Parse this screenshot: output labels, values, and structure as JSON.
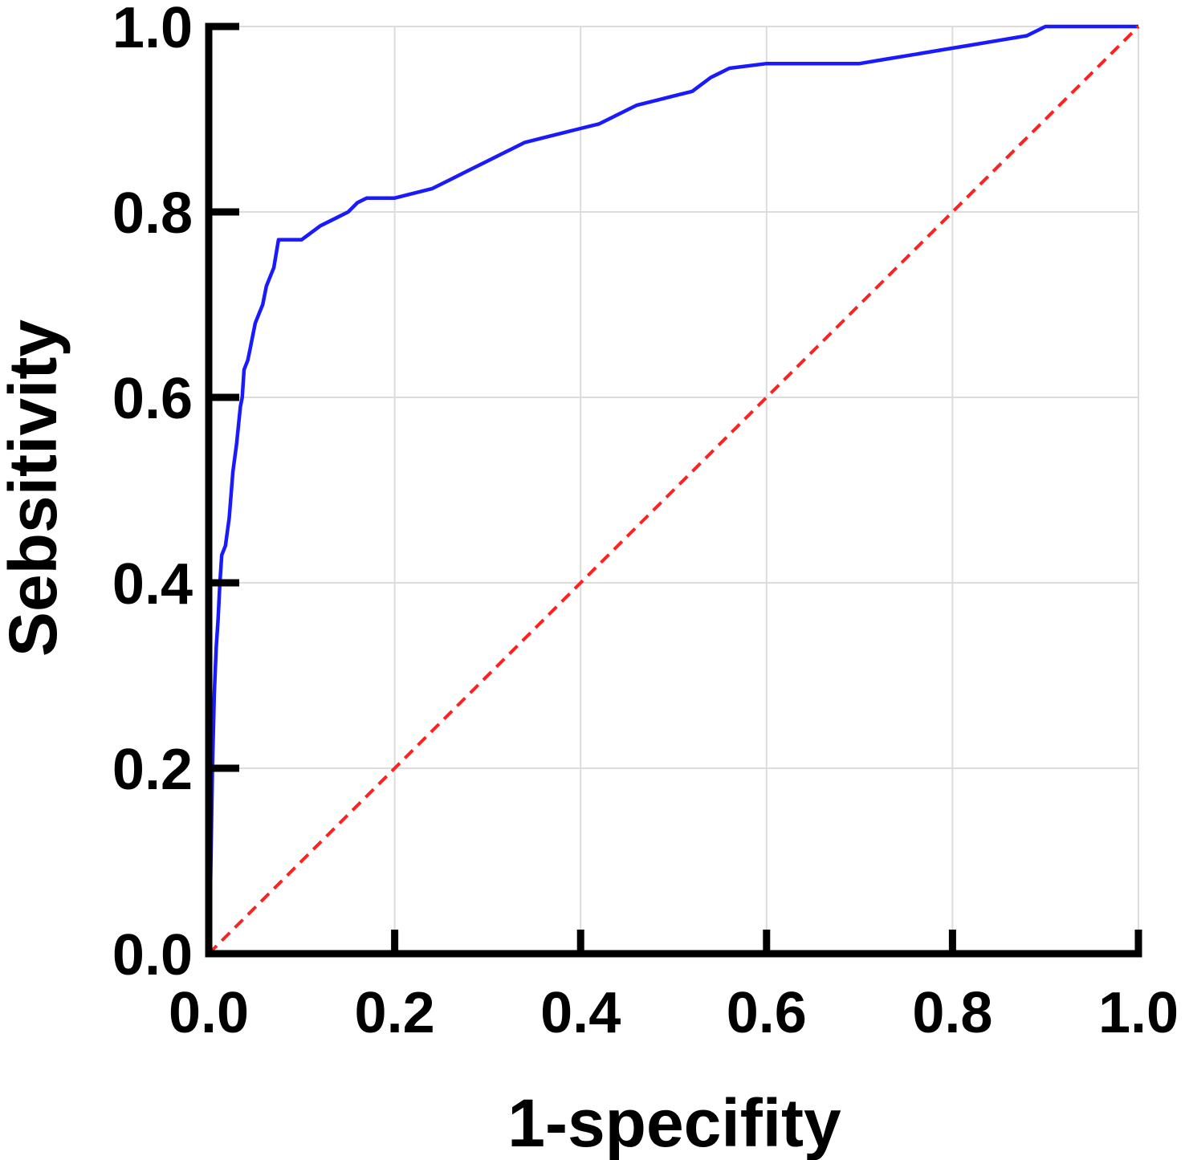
{
  "chart_data": {
    "type": "line",
    "title": "",
    "xlabel": "1-specifity",
    "ylabel": "Sebsitivity",
    "xlim": [
      0,
      1
    ],
    "ylim": [
      0,
      1
    ],
    "x_ticks": [
      "0.0",
      "0.2",
      "0.4",
      "0.6",
      "0.8",
      "1.0"
    ],
    "y_ticks": [
      "0.0",
      "0.2",
      "0.4",
      "0.6",
      "0.8",
      "1.0"
    ],
    "grid": true,
    "legend": "none",
    "series": [
      {
        "color": "#1a1aff",
        "style": "solid",
        "x": [
          0.0,
          0.002,
          0.004,
          0.006,
          0.008,
          0.01,
          0.012,
          0.014,
          0.018,
          0.022,
          0.026,
          0.03,
          0.034,
          0.036,
          0.038,
          0.042,
          0.044,
          0.046,
          0.05,
          0.054,
          0.058,
          0.062,
          0.066,
          0.07,
          0.075,
          0.08,
          0.085,
          0.09,
          0.095,
          0.1,
          0.12,
          0.14,
          0.15,
          0.16,
          0.17,
          0.2,
          0.24,
          0.26,
          0.28,
          0.3,
          0.32,
          0.34,
          0.36,
          0.38,
          0.4,
          0.42,
          0.44,
          0.45,
          0.46,
          0.48,
          0.5,
          0.52,
          0.54,
          0.55,
          0.56,
          0.6,
          0.7,
          0.73,
          0.76,
          0.79,
          0.82,
          0.85,
          0.88,
          0.9,
          0.92,
          0.94,
          0.96,
          0.98,
          1.0
        ],
        "y": [
          0.0,
          0.08,
          0.2,
          0.28,
          0.33,
          0.36,
          0.4,
          0.43,
          0.44,
          0.47,
          0.52,
          0.55,
          0.59,
          0.6,
          0.63,
          0.64,
          0.65,
          0.66,
          0.68,
          0.69,
          0.7,
          0.72,
          0.73,
          0.74,
          0.77,
          0.77,
          0.77,
          0.77,
          0.77,
          0.77,
          0.785,
          0.795,
          0.8,
          0.81,
          0.815,
          0.815,
          0.825,
          0.835,
          0.845,
          0.855,
          0.865,
          0.875,
          0.88,
          0.885,
          0.89,
          0.895,
          0.905,
          0.91,
          0.915,
          0.92,
          0.925,
          0.93,
          0.945,
          0.95,
          0.955,
          0.96,
          0.96,
          0.965,
          0.97,
          0.975,
          0.98,
          0.985,
          0.99,
          1.0,
          1.0,
          1.0,
          1.0,
          1.0,
          1.0
        ]
      },
      {
        "color": "#ff2020",
        "style": "dashed",
        "x": [
          0,
          1
        ],
        "y": [
          0,
          1
        ]
      }
    ]
  }
}
